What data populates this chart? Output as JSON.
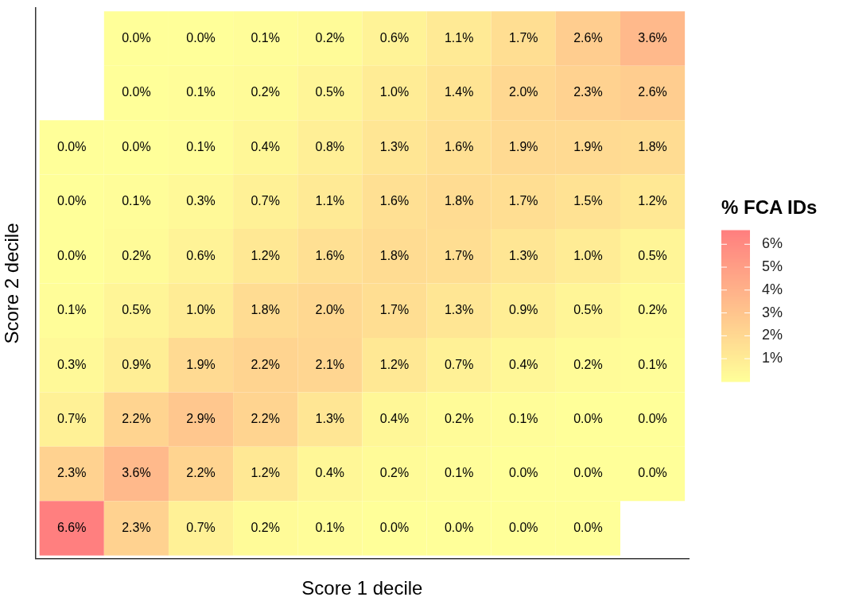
{
  "chart_data": {
    "type": "heatmap",
    "xlabel": "Score 1 decile",
    "ylabel": "Score 2 decile",
    "clabel": "% FCA IDs",
    "categories": [
      null,
      null,
      null,
      null,
      null,
      null,
      null,
      null,
      null,
      null
    ],
    "y_categories": [
      null,
      null,
      null,
      null,
      null,
      null,
      null,
      null,
      null,
      null
    ],
    "cells": [
      [
        null,
        0.0,
        0.0,
        0.1,
        0.2,
        0.6,
        1.1,
        1.7,
        2.6,
        3.6
      ],
      [
        null,
        0.0,
        0.1,
        0.2,
        0.5,
        1.0,
        1.4,
        2.0,
        2.3,
        2.6
      ],
      [
        0.0,
        0.0,
        0.1,
        0.4,
        0.8,
        1.3,
        1.6,
        1.9,
        1.9,
        1.8
      ],
      [
        0.0,
        0.1,
        0.3,
        0.7,
        1.1,
        1.6,
        1.8,
        1.7,
        1.5,
        1.2
      ],
      [
        0.0,
        0.2,
        0.6,
        1.2,
        1.6,
        1.8,
        1.7,
        1.3,
        1.0,
        0.5
      ],
      [
        0.1,
        0.5,
        1.0,
        1.8,
        2.0,
        1.7,
        1.3,
        0.9,
        0.5,
        0.2
      ],
      [
        0.3,
        0.9,
        1.9,
        2.2,
        2.1,
        1.2,
        0.7,
        0.4,
        0.2,
        0.1
      ],
      [
        0.7,
        2.2,
        2.9,
        2.2,
        1.3,
        0.4,
        0.2,
        0.1,
        0.0,
        0.0
      ],
      [
        2.3,
        3.6,
        2.2,
        1.2,
        0.4,
        0.2,
        0.1,
        0.0,
        0.0,
        0.0
      ],
      [
        6.6,
        2.3,
        0.7,
        0.2,
        0.1,
        0.0,
        0.0,
        0.0,
        0.0,
        null
      ]
    ],
    "cell_labels": [
      [
        null,
        "0.0%",
        "0.0%",
        "0.1%",
        "0.2%",
        "0.6%",
        "1.1%",
        "1.7%",
        "2.6%",
        "3.6%"
      ],
      [
        null,
        "0.0%",
        "0.1%",
        "0.2%",
        "0.5%",
        "1.0%",
        "1.4%",
        "2.0%",
        "2.3%",
        "2.6%"
      ],
      [
        "0.0%",
        "0.0%",
        "0.1%",
        "0.4%",
        "0.8%",
        "1.3%",
        "1.6%",
        "1.9%",
        "1.9%",
        "1.8%"
      ],
      [
        "0.0%",
        "0.1%",
        "0.3%",
        "0.7%",
        "1.1%",
        "1.6%",
        "1.8%",
        "1.7%",
        "1.5%",
        "1.2%"
      ],
      [
        "0.0%",
        "0.2%",
        "0.6%",
        "1.2%",
        "1.6%",
        "1.8%",
        "1.7%",
        "1.3%",
        "1.0%",
        "0.5%"
      ],
      [
        "0.1%",
        "0.5%",
        "1.0%",
        "1.8%",
        "2.0%",
        "1.7%",
        "1.3%",
        "0.9%",
        "0.5%",
        "0.2%"
      ],
      [
        "0.3%",
        "0.9%",
        "1.9%",
        "2.2%",
        "2.1%",
        "1.2%",
        "0.7%",
        "0.4%",
        "0.2%",
        "0.1%"
      ],
      [
        "0.7%",
        "2.2%",
        "2.9%",
        "2.2%",
        "1.3%",
        "0.4%",
        "0.2%",
        "0.1%",
        "0.0%",
        "0.0%"
      ],
      [
        "2.3%",
        "3.6%",
        "2.2%",
        "1.2%",
        "0.4%",
        "0.2%",
        "0.1%",
        "0.0%",
        "0.0%",
        "0.0%"
      ],
      [
        "6.6%",
        "2.3%",
        "0.7%",
        "0.2%",
        "0.1%",
        "0.0%",
        "0.0%",
        "0.0%",
        "0.0%",
        null
      ]
    ],
    "clim": [
      0,
      6.6
    ],
    "cticks": [
      {
        "value": 1,
        "label": "1%"
      },
      {
        "value": 2,
        "label": "2%"
      },
      {
        "value": 3,
        "label": "3%"
      },
      {
        "value": 4,
        "label": "4%"
      },
      {
        "value": 5,
        "label": "5%"
      },
      {
        "value": 6,
        "label": "6%"
      }
    ]
  }
}
